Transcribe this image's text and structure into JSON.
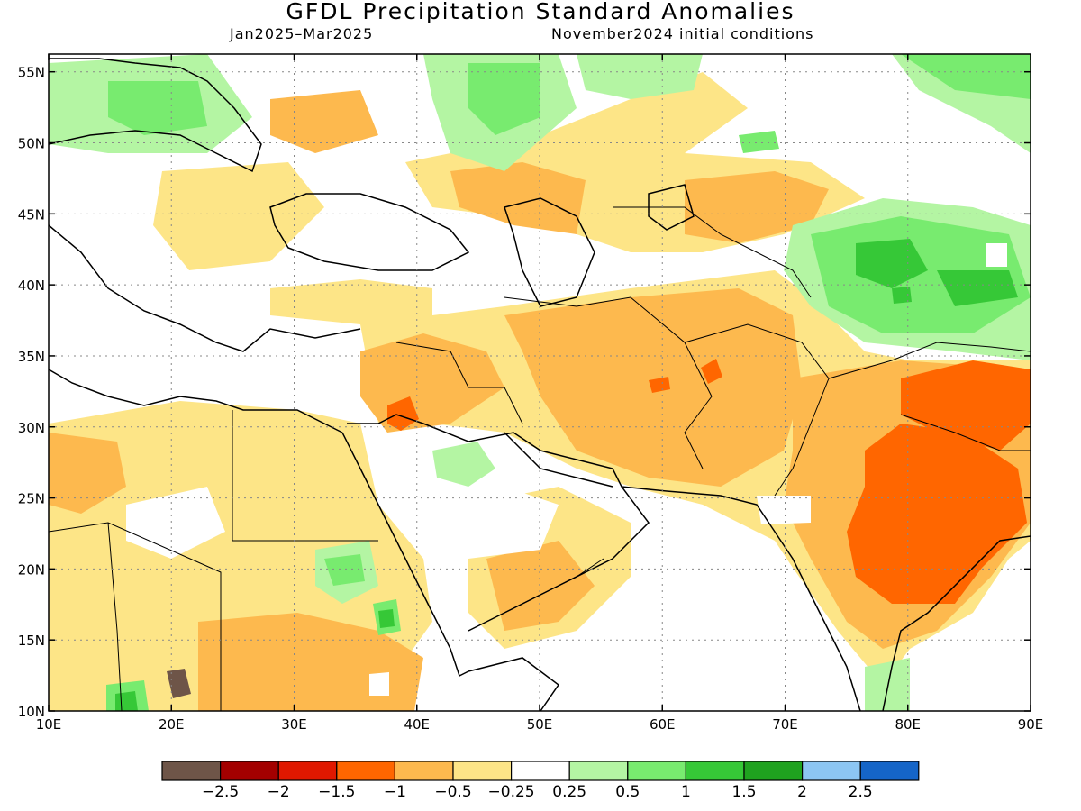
{
  "title": "GFDL Precipitation Standard Anomalies",
  "period": "Jan2025–Mar2025",
  "init": "November2024 initial conditions",
  "lon_ticks": [
    "10E",
    "20E",
    "30E",
    "40E",
    "50E",
    "60E",
    "70E",
    "80E",
    "90E"
  ],
  "lat_ticks": [
    "10N",
    "15N",
    "20N",
    "25N",
    "30N",
    "35N",
    "40N",
    "45N",
    "50N",
    "55N"
  ],
  "colorbar": {
    "colors": [
      "#6e5548",
      "#a30000",
      "#e01800",
      "#ff6600",
      "#fdb94e",
      "#fde587",
      "#ffffff",
      "#b4f5a3",
      "#78eb6f",
      "#36c837",
      "#1fa21f",
      "#8cc6f3",
      "#1565c8"
    ],
    "labels": [
      "−2.5",
      "−2",
      "−1.5",
      "−1",
      "−0.5",
      "−0.25",
      "0.25",
      "0.5",
      "1",
      "1.5",
      "2",
      "2.5"
    ]
  }
}
